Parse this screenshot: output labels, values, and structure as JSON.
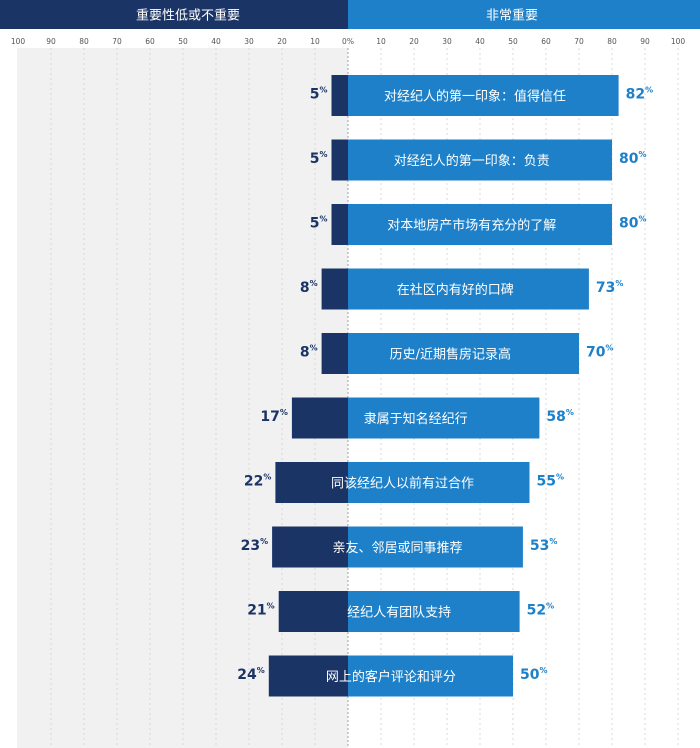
{
  "header": {
    "left_label": "重要性低或不重要",
    "right_label": "非常重要"
  },
  "colors": {
    "left_bar": "#1b3466",
    "right_bar": "#1d80c8",
    "left_text": "#1b3466",
    "right_text": "#1d80c8",
    "header_left": "#1b3466",
    "header_right": "#1d80c8",
    "shade": "#f1f1f1",
    "grid": "#d2d2d2"
  },
  "chart_data": {
    "type": "bar",
    "orientation": "horizontal-diverging",
    "xlim": [
      -100,
      100
    ],
    "tick_labels_left": [
      "100",
      "90",
      "80",
      "70",
      "60",
      "50",
      "40",
      "30",
      "20",
      "10",
      "0%"
    ],
    "tick_labels_right": [
      "0%",
      "10",
      "20",
      "30",
      "40",
      "50",
      "60",
      "70",
      "80",
      "90",
      "100"
    ],
    "percent_sign": "%",
    "categories": [
      "对经纪人的第一印象：值得信任",
      "对经纪人的第一印象：负责",
      "对本地房产市场有充分的了解",
      "在社区内有好的口碑",
      "历史/近期售房记录高",
      "隶属于知名经纪行",
      "同该经纪人以前有过合作",
      "亲友、邻居或同事推荐",
      "经纪人有团队支持",
      "网上的客户评论和评分"
    ],
    "series": [
      {
        "name": "重要性低或不重要",
        "values": [
          5,
          5,
          5,
          8,
          8,
          17,
          22,
          23,
          21,
          24
        ]
      },
      {
        "name": "非常重要",
        "values": [
          82,
          80,
          80,
          73,
          70,
          58,
          55,
          53,
          52,
          50
        ]
      }
    ],
    "grid": true,
    "legend": "top"
  }
}
